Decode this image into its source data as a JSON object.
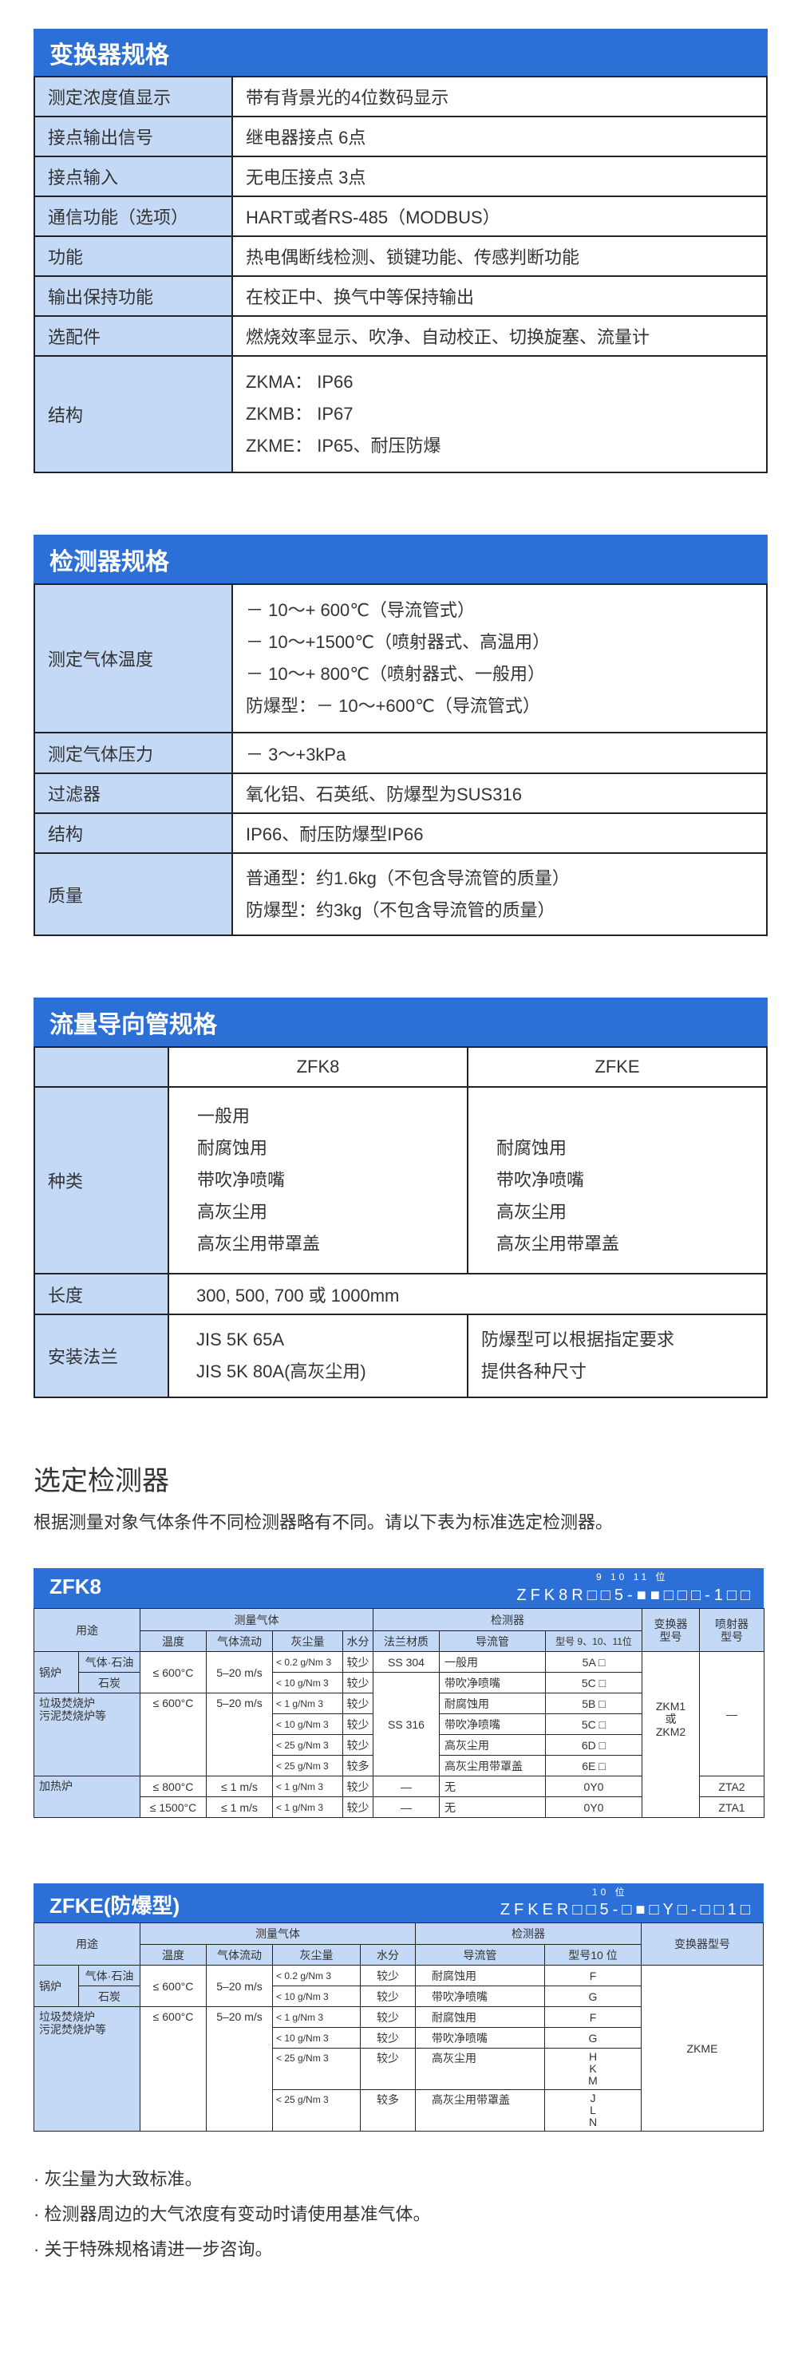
{
  "converter_spec": {
    "title": "变换器规格",
    "rows": [
      {
        "label": "测定浓度值显示",
        "value": "带有背景光的4位数码显示"
      },
      {
        "label": "接点输出信号",
        "value": "继电器接点 6点"
      },
      {
        "label": "接点输入",
        "value": "无电压接点 3点"
      },
      {
        "label": "通信功能（选项）",
        "value": "HART或者RS-485（MODBUS）"
      },
      {
        "label": "功能",
        "value": "热电偶断线检测、锁键功能、传感判断功能"
      },
      {
        "label": "输出保持功能",
        "value": "在校正中、换气中等保持输出"
      },
      {
        "label": "选配件",
        "value": "燃烧效率显示、吹净、自动校正、切换旋塞、流量计"
      },
      {
        "label": "结构",
        "lines": [
          "ZKMA： IP66",
          "ZKMB： IP67",
          "ZKME： IP65、耐压防爆"
        ]
      }
    ]
  },
  "detector_spec": {
    "title": "检测器规格",
    "rows": [
      {
        "label": "测定气体温度",
        "lines": [
          "－ 10～+ 600℃（导流管式）",
          "－ 10～+1500℃（喷射器式、高温用）",
          "－ 10～+ 800℃（喷射器式、一般用）",
          "防爆型：－ 10～+600℃（导流管式）"
        ]
      },
      {
        "label": "测定气体压力",
        "lines": [
          "－ 3～+3kPa"
        ]
      },
      {
        "label": "过滤器",
        "lines": [
          "氧化铝、石英纸、防爆型为SUS316"
        ]
      },
      {
        "label": "结构",
        "lines": [
          "IP66、耐压防爆型IP66"
        ]
      },
      {
        "label": "质量",
        "lines": [
          "普通型：约1.6kg（不包含导流管的质量）",
          "防爆型：约3kg（不包含导流管的质量）"
        ]
      }
    ]
  },
  "flow_tube_spec": {
    "title": "流量导向管规格",
    "columns": [
      "ZFK8",
      "ZFKE"
    ],
    "types": {
      "label": "种类",
      "zfk8": [
        "一般用",
        "耐腐蚀用",
        "带吹净喷嘴",
        "高灰尘用",
        "高灰尘用带罩盖"
      ],
      "zfke": [
        "耐腐蚀用",
        "带吹净喷嘴",
        "高灰尘用",
        "高灰尘用带罩盖"
      ]
    },
    "length": {
      "label": "长度",
      "value": "300, 500, 700 或 1000mm"
    },
    "flange": {
      "label": "安装法兰",
      "zfk8": [
        "JIS 5K 65A",
        "JIS 5K 80A(高灰尘用)"
      ],
      "zfke": [
        "防爆型可以根据指定要求",
        "提供各种尺寸"
      ]
    }
  },
  "selection": {
    "heading": "选定检测器",
    "description": "根据测量对象气体条件不同检测器略有不同。请以下表为标准选定检测器。"
  },
  "zfk8_table": {
    "title": "ZFK8",
    "code_positions": "9 10 11 位",
    "code": "ZFK8R□□5-■■□□□-1□□",
    "headers": {
      "usage": "用途",
      "measured_gas": "测量气体",
      "temperature": "温度",
      "flow": "气体流动",
      "dust": "灰尘量",
      "water": "水分",
      "flange": "法兰材质",
      "detector": "检测器",
      "guide_tube": "导流管",
      "model": "型号 9、10、11位",
      "converter_1": "变换器",
      "converter_2": "型号",
      "injector_1": "喷射器",
      "injector_2": "型号"
    },
    "usage": {
      "boiler": "锅炉",
      "gas_oil": "气体·石油",
      "coal": "石炭",
      "incinerator_1": "垃圾焚烧炉",
      "incinerator_2": "污泥焚烧炉等",
      "heating": "加热炉"
    },
    "temp_600": "≤ 600°C",
    "temp_600b": "≤ 600°C",
    "temp_800": "≤ 800°C",
    "temp_1500": "≤ 1500°C",
    "flow_5_20": "5–20 m/s",
    "flow_5_20b": "5–20 m/s",
    "flow_1": "≤ 1 m/s",
    "flow_1b": "≤ 1 m/s",
    "rows": [
      {
        "dust": "< 0.2 g/Nm 3",
        "water": "较少",
        "guide": "一般用",
        "model": "5A □"
      },
      {
        "dust": "< 10 g/Nm 3",
        "water": "较少",
        "guide": "带吹净喷嘴",
        "model": "5C □"
      },
      {
        "dust": "< 1 g/Nm 3",
        "water": "较少",
        "guide": "耐腐蚀用",
        "model": "5B □"
      },
      {
        "dust": "< 10 g/Nm 3",
        "water": "较少",
        "guide": "带吹净喷嘴",
        "model": "5C □"
      },
      {
        "dust": "< 25 g/Nm 3",
        "water": "较少",
        "guide": "高灰尘用",
        "model": "6D □"
      },
      {
        "dust": "< 25 g/Nm 3",
        "water": "较多",
        "guide": "高灰尘用带罩盖",
        "model": "6E □"
      },
      {
        "dust": "< 1 g/Nm 3",
        "water": "较少",
        "flange": "—",
        "guide": "无",
        "model": "0Y0",
        "injector": "ZTA2"
      },
      {
        "dust": "< 1 g/Nm 3",
        "water": "较少",
        "flange": "—",
        "guide": "无",
        "model": "0Y0",
        "injector": "ZTA1"
      }
    ],
    "flange_ss304": "SS 304",
    "flange_ss316": "SS 316",
    "converter": [
      "ZKM1",
      "或",
      "ZKM2"
    ],
    "injector_none": "—"
  },
  "zfke_table": {
    "title": "ZFKE(防爆型)",
    "code_positions": "10 位",
    "code": "ZFKER□□5-□■□Y□-□□1□",
    "headers": {
      "usage": "用途",
      "measured_gas": "测量气体",
      "temperature": "温度",
      "flow": "气体流动",
      "dust": "灰尘量",
      "water": "水分",
      "detector": "检测器",
      "guide_tube": "导流管",
      "model": "型号10 位",
      "converter": "变换器型号"
    },
    "usage": {
      "boiler": "锅炉",
      "gas_oil": "气体·石油",
      "coal": "石炭",
      "incinerator_1": "垃圾焚烧炉",
      "incinerator_2": "污泥焚烧炉等"
    },
    "temp_600": "≤ 600°C",
    "temp_600b": "≤ 600°C",
    "flow_5_20": "5–20 m/s",
    "flow_5_20b": "5–20 m/s",
    "rows": [
      {
        "dust": "< 0.2 g/Nm 3",
        "water": "较少",
        "guide": "耐腐蚀用",
        "model": [
          "F"
        ]
      },
      {
        "dust": "< 10 g/Nm 3",
        "water": "较少",
        "guide": "带吹净喷嘴",
        "model": [
          "G"
        ]
      },
      {
        "dust": "< 1 g/Nm 3",
        "water": "较少",
        "guide": "耐腐蚀用",
        "model": [
          "F"
        ]
      },
      {
        "dust": "< 10 g/Nm 3",
        "water": "较少",
        "guide": "带吹净喷嘴",
        "model": [
          "G"
        ]
      },
      {
        "dust": "< 25 g/Nm 3",
        "water": "较少",
        "guide": "高灰尘用",
        "model": [
          "H",
          "K",
          "M"
        ]
      },
      {
        "dust": "< 25 g/Nm 3",
        "water": "较多",
        "guide": "高灰尘用带罩盖",
        "model": [
          "J",
          "L",
          "N"
        ]
      }
    ],
    "converter": "ZKME"
  },
  "notes": [
    "· 灰尘量为大致标准。",
    "· 检测器周边的大气浓度有变动时请使用基准气体。",
    "· 关于特殊规格请进一步咨询。"
  ],
  "colors": {
    "accent": "#2b6fd7",
    "label_bg": "#c4d9f6",
    "border": "#222222"
  }
}
